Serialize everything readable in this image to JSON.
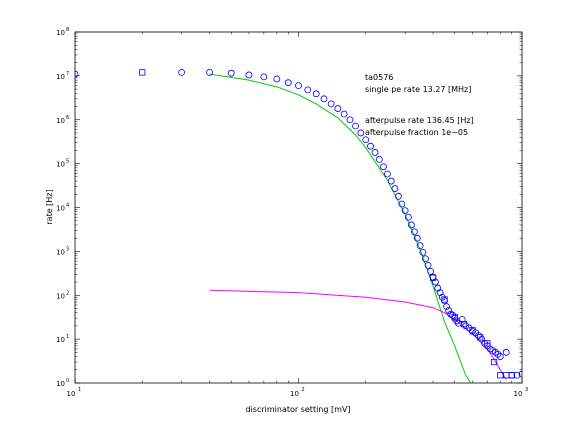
{
  "chart_data": {
    "type": "scatter",
    "xlabel": "discriminator setting [mV]",
    "ylabel": "rate [Hz]",
    "xscale": "log",
    "yscale": "log",
    "xlim": [
      10,
      1000
    ],
    "ylim": [
      1,
      100000000
    ],
    "grid": false,
    "x_ticks": [
      {
        "base": "10",
        "exp": "1"
      },
      {
        "base": "10",
        "exp": "2"
      },
      {
        "base": "10",
        "exp": "3"
      }
    ],
    "y_ticks": [
      {
        "base": "10",
        "exp": "0"
      },
      {
        "base": "10",
        "exp": "1"
      },
      {
        "base": "10",
        "exp": "2"
      },
      {
        "base": "10",
        "exp": "3"
      },
      {
        "base": "10",
        "exp": "4"
      },
      {
        "base": "10",
        "exp": "5"
      },
      {
        "base": "10",
        "exp": "6"
      },
      {
        "base": "10",
        "exp": "7"
      },
      {
        "base": "10",
        "exp": "8"
      }
    ],
    "annotations": [
      "ta0576",
      "single pe rate 13.27 [MHz]",
      "afterpulse rate 136.45 [Hz]",
      "afterpulse fraction 1e−05"
    ],
    "series": [
      {
        "marker": "circle",
        "color": "#0000ff",
        "points": [
          [
            10,
            11000000
          ],
          [
            30,
            12000000
          ],
          [
            40,
            12000000
          ],
          [
            50,
            11500000
          ],
          [
            60,
            10500000
          ],
          [
            70,
            9500000
          ],
          [
            80,
            8500000
          ],
          [
            90,
            7000000
          ],
          [
            100,
            6000000
          ],
          [
            110,
            4800000
          ],
          [
            120,
            3900000
          ],
          [
            130,
            3000000
          ],
          [
            140,
            2300000
          ],
          [
            150,
            1800000
          ],
          [
            160,
            1350000
          ],
          [
            170,
            1000000
          ],
          [
            180,
            720000
          ],
          [
            190,
            500000
          ],
          [
            200,
            350000
          ],
          [
            210,
            250000
          ],
          [
            220,
            180000
          ],
          [
            230,
            125000
          ],
          [
            240,
            85000
          ],
          [
            250,
            58000
          ],
          [
            260,
            40000
          ],
          [
            270,
            27000
          ],
          [
            280,
            18000
          ],
          [
            290,
            12000
          ],
          [
            300,
            8500
          ],
          [
            310,
            6000
          ],
          [
            320,
            4000
          ],
          [
            330,
            2800
          ],
          [
            340,
            2000
          ],
          [
            350,
            1350
          ],
          [
            360,
            950
          ],
          [
            370,
            680
          ],
          [
            380,
            480
          ],
          [
            390,
            350
          ],
          [
            400,
            260
          ],
          [
            410,
            200
          ],
          [
            420,
            145
          ],
          [
            430,
            115
          ],
          [
            440,
            90
          ],
          [
            450,
            75
          ],
          [
            460,
            55
          ],
          [
            470,
            45
          ],
          [
            480,
            37
          ],
          [
            490,
            35
          ],
          [
            500,
            30
          ],
          [
            510,
            26
          ],
          [
            520,
            23
          ],
          [
            540,
            28
          ],
          [
            560,
            20
          ],
          [
            580,
            18
          ],
          [
            600,
            15
          ],
          [
            620,
            14
          ],
          [
            640,
            12
          ],
          [
            660,
            10
          ],
          [
            680,
            8
          ],
          [
            700,
            7
          ],
          [
            720,
            6
          ],
          [
            740,
            5.5
          ],
          [
            760,
            5
          ],
          [
            780,
            4.5
          ],
          [
            800,
            4
          ],
          [
            850,
            5
          ],
          [
            900,
            1.5
          ],
          [
            950,
            1.5
          ],
          [
            1000,
            1.6
          ]
        ]
      },
      {
        "marker": "square",
        "color": "#0000ff",
        "points": [
          [
            20,
            12000000
          ],
          [
            400,
            250
          ],
          [
            450,
            80
          ],
          [
            500,
            32
          ],
          [
            550,
            22
          ],
          [
            600,
            16
          ],
          [
            650,
            11
          ],
          [
            700,
            8
          ],
          [
            750,
            3
          ],
          [
            800,
            1.5
          ],
          [
            850,
            1.5
          ],
          [
            900,
            1.5
          ]
        ]
      }
    ],
    "lines": [
      {
        "color": "#00cc00",
        "points": [
          [
            40,
            11000000
          ],
          [
            60,
            8000000
          ],
          [
            80,
            5600000
          ],
          [
            100,
            3700000
          ],
          [
            120,
            2300000
          ],
          [
            150,
            1100000
          ],
          [
            180,
            450000
          ],
          [
            200,
            230000
          ],
          [
            250,
            42000
          ],
          [
            300,
            7000
          ],
          [
            350,
            1100
          ],
          [
            400,
            160
          ],
          [
            450,
            25
          ],
          [
            500,
            7
          ],
          [
            560,
            1.5
          ],
          [
            590,
            1
          ]
        ]
      },
      {
        "color": "#ff00ff",
        "points": [
          [
            40,
            130
          ],
          [
            100,
            115
          ],
          [
            200,
            90
          ],
          [
            300,
            70
          ],
          [
            400,
            52
          ],
          [
            450,
            40
          ],
          [
            500,
            28
          ],
          [
            550,
            19
          ],
          [
            600,
            13
          ],
          [
            650,
            9
          ],
          [
            700,
            6
          ],
          [
            750,
            3.5
          ],
          [
            800,
            2
          ],
          [
            850,
            1.2
          ]
        ]
      }
    ]
  }
}
